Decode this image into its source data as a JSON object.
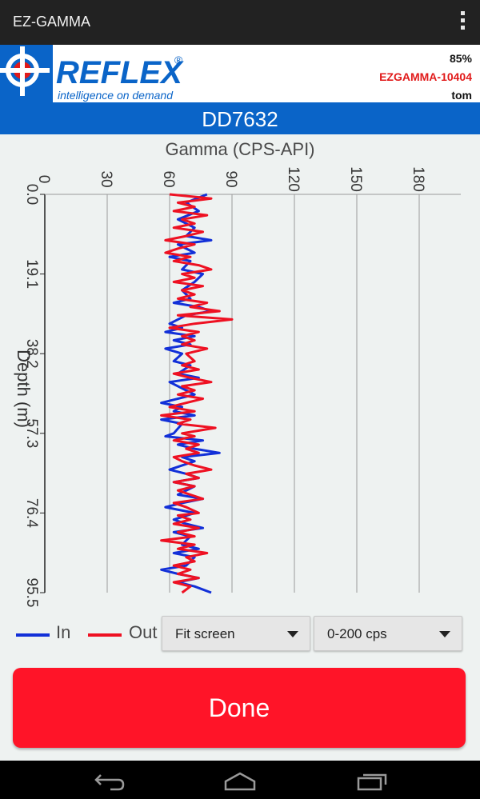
{
  "app": {
    "title": "EZ-GAMMA"
  },
  "header": {
    "logo_text": "REFLEX",
    "logo_tagline": "intelligence on demand",
    "logo_mark": "®",
    "battery": "85%",
    "device_id": "EZGAMMA-10404",
    "user": "tom"
  },
  "hole": {
    "id": "DD7632"
  },
  "chart_data": {
    "type": "line",
    "title": "Gamma (CPS-API)",
    "xlabel": "Gamma (CPS-API)",
    "ylabel": "Depth (m)",
    "x_ticks": [
      "0",
      "30",
      "60",
      "90",
      "120",
      "150",
      "180"
    ],
    "y_ticks": [
      "0.0",
      "19.1",
      "38.2",
      "57.3",
      "76.4",
      "95.5"
    ],
    "xlim": [
      0,
      200
    ],
    "ylim": [
      0,
      95.5
    ],
    "grid": true,
    "y_inverted": true,
    "legend_position": "bottom-left",
    "series": [
      {
        "name": "In",
        "color": "#1230d8",
        "points": [
          [
            78,
            0
          ],
          [
            68,
            2
          ],
          [
            74,
            4
          ],
          [
            64,
            6
          ],
          [
            72,
            8
          ],
          [
            68,
            10
          ],
          [
            80,
            11
          ],
          [
            64,
            12
          ],
          [
            72,
            14
          ],
          [
            60,
            15
          ],
          [
            70,
            16
          ],
          [
            66,
            18
          ],
          [
            76,
            19.1
          ],
          [
            72,
            21
          ],
          [
            66,
            23
          ],
          [
            70,
            25
          ],
          [
            62,
            26
          ],
          [
            74,
            27
          ],
          [
            80,
            28
          ],
          [
            68,
            29
          ],
          [
            60,
            31
          ],
          [
            66,
            32
          ],
          [
            58,
            33
          ],
          [
            72,
            34
          ],
          [
            62,
            35
          ],
          [
            70,
            36
          ],
          [
            58,
            37
          ],
          [
            66,
            38.2
          ],
          [
            62,
            40
          ],
          [
            70,
            41
          ],
          [
            64,
            43
          ],
          [
            74,
            44
          ],
          [
            60,
            45
          ],
          [
            68,
            47
          ],
          [
            72,
            48
          ],
          [
            56,
            50
          ],
          [
            66,
            51
          ],
          [
            62,
            52
          ],
          [
            72,
            53
          ],
          [
            56,
            54
          ],
          [
            66,
            55
          ],
          [
            62,
            57.3
          ],
          [
            58,
            58
          ],
          [
            76,
            59
          ],
          [
            64,
            60
          ],
          [
            72,
            61
          ],
          [
            84,
            62
          ],
          [
            66,
            63
          ],
          [
            72,
            64
          ],
          [
            60,
            66
          ],
          [
            68,
            67
          ],
          [
            74,
            68
          ],
          [
            62,
            69
          ],
          [
            72,
            70
          ],
          [
            64,
            72
          ],
          [
            76,
            73
          ],
          [
            66,
            74
          ],
          [
            58,
            75
          ],
          [
            72,
            76.4
          ],
          [
            62,
            78
          ],
          [
            68,
            79
          ],
          [
            76,
            80
          ],
          [
            62,
            81
          ],
          [
            70,
            82
          ],
          [
            66,
            84
          ],
          [
            74,
            85
          ],
          [
            62,
            86
          ],
          [
            72,
            87
          ],
          [
            68,
            89
          ],
          [
            56,
            90
          ],
          [
            64,
            91
          ],
          [
            74,
            92
          ],
          [
            64,
            93
          ],
          [
            72,
            94
          ],
          [
            80,
            95.5
          ]
        ]
      },
      {
        "name": "Out",
        "color": "#ee1122",
        "points": [
          [
            60,
            0
          ],
          [
            80,
            1
          ],
          [
            64,
            2
          ],
          [
            72,
            3
          ],
          [
            62,
            4
          ],
          [
            78,
            5
          ],
          [
            66,
            6
          ],
          [
            72,
            7
          ],
          [
            62,
            8
          ],
          [
            76,
            9
          ],
          [
            68,
            10
          ],
          [
            58,
            11
          ],
          [
            72,
            12
          ],
          [
            64,
            13
          ],
          [
            58,
            14
          ],
          [
            70,
            15
          ],
          [
            62,
            16
          ],
          [
            74,
            17
          ],
          [
            80,
            18
          ],
          [
            66,
            19.1
          ],
          [
            72,
            20
          ],
          [
            62,
            21
          ],
          [
            76,
            22
          ],
          [
            66,
            23
          ],
          [
            72,
            24
          ],
          [
            64,
            25
          ],
          [
            78,
            26
          ],
          [
            70,
            27
          ],
          [
            84,
            28
          ],
          [
            64,
            29
          ],
          [
            90,
            30
          ],
          [
            72,
            31
          ],
          [
            60,
            32
          ],
          [
            74,
            33
          ],
          [
            66,
            34
          ],
          [
            72,
            35
          ],
          [
            66,
            36
          ],
          [
            78,
            37
          ],
          [
            68,
            38.2
          ],
          [
            72,
            40
          ],
          [
            66,
            41
          ],
          [
            74,
            42
          ],
          [
            62,
            43
          ],
          [
            70,
            44
          ],
          [
            80,
            45
          ],
          [
            66,
            46
          ],
          [
            72,
            47
          ],
          [
            64,
            48
          ],
          [
            76,
            49
          ],
          [
            68,
            50
          ],
          [
            60,
            51
          ],
          [
            72,
            52
          ],
          [
            56,
            53
          ],
          [
            70,
            54
          ],
          [
            64,
            55
          ],
          [
            82,
            56
          ],
          [
            66,
            57.3
          ],
          [
            72,
            58
          ],
          [
            62,
            59
          ],
          [
            74,
            60
          ],
          [
            68,
            61
          ],
          [
            74,
            62
          ],
          [
            62,
            63
          ],
          [
            66,
            64
          ],
          [
            72,
            65
          ],
          [
            80,
            66
          ],
          [
            68,
            67
          ],
          [
            74,
            68
          ],
          [
            62,
            69
          ],
          [
            72,
            70
          ],
          [
            64,
            71
          ],
          [
            70,
            72
          ],
          [
            76,
            73
          ],
          [
            62,
            74
          ],
          [
            68,
            75
          ],
          [
            74,
            76.4
          ],
          [
            64,
            77
          ],
          [
            70,
            78
          ],
          [
            62,
            79
          ],
          [
            74,
            80
          ],
          [
            64,
            81
          ],
          [
            72,
            82
          ],
          [
            56,
            83
          ],
          [
            72,
            84
          ],
          [
            64,
            85
          ],
          [
            78,
            86
          ],
          [
            68,
            87
          ],
          [
            72,
            88
          ],
          [
            62,
            89
          ],
          [
            70,
            90
          ],
          [
            64,
            91
          ],
          [
            74,
            92
          ],
          [
            62,
            93
          ],
          [
            70,
            94
          ],
          [
            66,
            95.5
          ]
        ]
      }
    ]
  },
  "legend": {
    "in_label": "In",
    "out_label": "Out"
  },
  "controls": {
    "zoom_value": "Fit screen",
    "range_value": "0-200 cps",
    "done_label": "Done"
  }
}
